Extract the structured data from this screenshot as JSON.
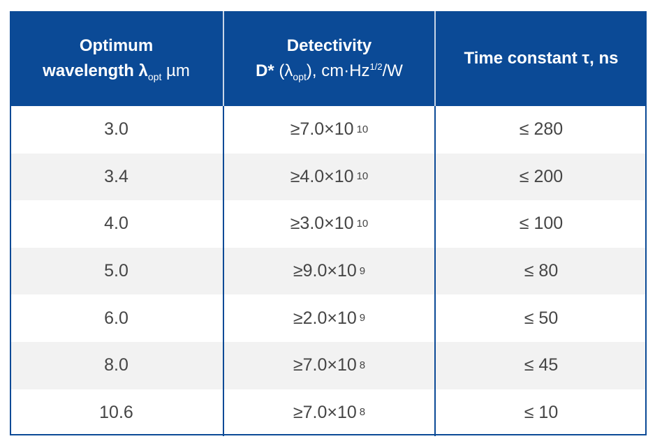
{
  "header": {
    "col1_line1": "Optimum",
    "col1_line2_pre": "wavelength λ",
    "col1_sub": "opt",
    "col1_unit": " µm",
    "col2_line1": "Detectivity",
    "col2_line2_pre": "D*",
    "col2_lambda": " (λ",
    "col2_sub": "opt",
    "col2_unit_pre": "), cm·Hz",
    "col2_sup": "1/2",
    "col2_unit_post": "/W",
    "col3": "Time constant τ, ns"
  },
  "colors": {
    "header_bg": "#0b4a96",
    "alt_row": "#f2f2f2",
    "text": "#454545",
    "border": "#0b4a96"
  },
  "rows": [
    {
      "wavelength": "3.0",
      "detectivity": "≥7.0×10",
      "exp": "10",
      "time": "≤ 280"
    },
    {
      "wavelength": "3.4",
      "detectivity": "≥4.0×10",
      "exp": "10",
      "time": "≤ 200"
    },
    {
      "wavelength": "4.0",
      "detectivity": "≥3.0×10",
      "exp": "10",
      "time": "≤ 100"
    },
    {
      "wavelength": "5.0",
      "detectivity": "≥9.0×10",
      "exp": "9",
      "time": "≤ 80"
    },
    {
      "wavelength": "6.0",
      "detectivity": "≥2.0×10",
      "exp": "9",
      "time": "≤ 50"
    },
    {
      "wavelength": "8.0",
      "detectivity": "≥7.0×10",
      "exp": "8",
      "time": "≤ 45"
    },
    {
      "wavelength": "10.6",
      "detectivity": "≥7.0×10",
      "exp": "8",
      "time": "≤ 10"
    }
  ]
}
